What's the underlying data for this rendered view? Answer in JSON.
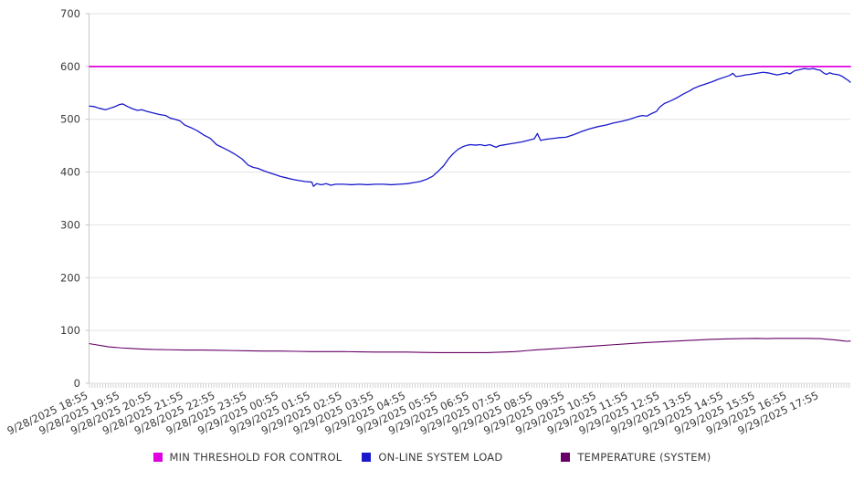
{
  "page": {
    "background": "#ffffff"
  },
  "legend": {
    "items": [
      {
        "label": "MIN THRESHOLD FOR CONTROL",
        "color": "#e000e0"
      },
      {
        "label": "ON-LINE SYSTEM LOAD",
        "color": "#1a1acc"
      },
      {
        "label": "TEMPERATURE (SYSTEM)",
        "color": "#660066"
      }
    ]
  },
  "chart_data": {
    "type": "line",
    "title": "",
    "xlabel": "",
    "ylabel": "",
    "x_unit": "hours since 9/28/2025 18:55",
    "xlim": [
      0,
      23.95
    ],
    "ylim": [
      0,
      700
    ],
    "y_ticks": [
      0,
      100,
      200,
      300,
      400,
      500,
      600,
      700
    ],
    "x_tick_labels": [
      "9/28/2025 18:55",
      "9/28/2025 19:55",
      "9/28/2025 20:55",
      "9/28/2025 21:55",
      "9/28/2025 22:55",
      "9/28/2025 23:55",
      "9/29/2025 00:55",
      "9/29/2025 01:55",
      "9/29/2025 02:55",
      "9/29/2025 03:55",
      "9/29/2025 04:55",
      "9/29/2025 05:55",
      "9/29/2025 06:55",
      "9/29/2025 07:55",
      "9/29/2025 08:55",
      "9/29/2025 09:55",
      "9/29/2025 10:55",
      "9/29/2025 11:55",
      "9/29/2025 12:55",
      "9/29/2025 13:55",
      "9/29/2025 14:55",
      "9/29/2025 15:55",
      "9/29/2025 16:55",
      "9/29/2025 17:55"
    ],
    "minor_ticks_per_hour": 12,
    "grid": "horizontal",
    "legend_position": "bottom",
    "colors": {
      "grid_line": "#e3e3e3",
      "axis_line": "#c8c8c8",
      "tick_mark": "#c8c8c8",
      "tick_label": "#3a3a3a"
    },
    "series": [
      {
        "name": "MIN THRESHOLD FOR CONTROL",
        "color": "#e000e0",
        "width": 1.8,
        "points": [
          [
            0,
            600
          ],
          [
            23.95,
            600
          ]
        ]
      },
      {
        "name": "ON-LINE SYSTEM LOAD",
        "color": "#1a1acc",
        "width": 1.3,
        "points": [
          [
            0,
            525
          ],
          [
            0.15,
            524
          ],
          [
            0.3,
            521
          ],
          [
            0.5,
            518
          ],
          [
            0.65,
            521
          ],
          [
            0.8,
            524
          ],
          [
            0.95,
            528
          ],
          [
            1.05,
            529
          ],
          [
            1.2,
            524
          ],
          [
            1.35,
            520
          ],
          [
            1.5,
            517
          ],
          [
            1.65,
            518
          ],
          [
            1.8,
            515
          ],
          [
            2,
            512
          ],
          [
            2.2,
            509
          ],
          [
            2.4,
            507
          ],
          [
            2.55,
            502
          ],
          [
            2.7,
            500
          ],
          [
            2.85,
            497
          ],
          [
            3,
            489
          ],
          [
            3.2,
            484
          ],
          [
            3.4,
            478
          ],
          [
            3.6,
            470
          ],
          [
            3.8,
            464
          ],
          [
            4,
            452
          ],
          [
            4.2,
            446
          ],
          [
            4.4,
            440
          ],
          [
            4.6,
            433
          ],
          [
            4.8,
            425
          ],
          [
            5,
            413
          ],
          [
            5.15,
            409
          ],
          [
            5.3,
            407
          ],
          [
            5.5,
            402
          ],
          [
            5.7,
            398
          ],
          [
            5.9,
            394
          ],
          [
            6,
            392
          ],
          [
            6.2,
            389
          ],
          [
            6.4,
            386
          ],
          [
            6.6,
            384
          ],
          [
            6.8,
            382
          ],
          [
            7,
            381
          ],
          [
            7.05,
            373
          ],
          [
            7.15,
            378
          ],
          [
            7.3,
            376
          ],
          [
            7.45,
            378
          ],
          [
            7.6,
            375
          ],
          [
            7.75,
            377
          ],
          [
            8,
            377
          ],
          [
            8.25,
            376
          ],
          [
            8.5,
            377
          ],
          [
            8.75,
            376
          ],
          [
            9,
            377
          ],
          [
            9.25,
            377
          ],
          [
            9.5,
            376
          ],
          [
            9.75,
            377
          ],
          [
            10,
            378
          ],
          [
            10.2,
            380
          ],
          [
            10.4,
            382
          ],
          [
            10.6,
            386
          ],
          [
            10.8,
            392
          ],
          [
            11,
            403
          ],
          [
            11.15,
            412
          ],
          [
            11.3,
            425
          ],
          [
            11.45,
            435
          ],
          [
            11.6,
            443
          ],
          [
            11.75,
            448
          ],
          [
            11.9,
            451
          ],
          [
            12,
            452
          ],
          [
            12.15,
            451
          ],
          [
            12.3,
            452
          ],
          [
            12.45,
            450
          ],
          [
            12.6,
            452
          ],
          [
            12.8,
            447
          ],
          [
            12.9,
            450
          ],
          [
            13,
            451
          ],
          [
            13.2,
            453
          ],
          [
            13.4,
            455
          ],
          [
            13.6,
            457
          ],
          [
            13.8,
            460
          ],
          [
            14,
            463
          ],
          [
            14.1,
            473
          ],
          [
            14.2,
            460
          ],
          [
            14.35,
            462
          ],
          [
            14.5,
            463
          ],
          [
            14.75,
            465
          ],
          [
            15,
            466
          ],
          [
            15.25,
            471
          ],
          [
            15.5,
            477
          ],
          [
            15.75,
            482
          ],
          [
            16,
            486
          ],
          [
            16.25,
            489
          ],
          [
            16.5,
            493
          ],
          [
            16.75,
            496
          ],
          [
            17,
            500
          ],
          [
            17.25,
            505
          ],
          [
            17.4,
            507
          ],
          [
            17.55,
            506
          ],
          [
            17.7,
            511
          ],
          [
            17.85,
            515
          ],
          [
            17.95,
            523
          ],
          [
            18.1,
            530
          ],
          [
            18.3,
            535
          ],
          [
            18.5,
            541
          ],
          [
            18.7,
            548
          ],
          [
            18.9,
            554
          ],
          [
            19,
            558
          ],
          [
            19.2,
            563
          ],
          [
            19.4,
            567
          ],
          [
            19.6,
            571
          ],
          [
            19.8,
            576
          ],
          [
            20,
            580
          ],
          [
            20.15,
            583
          ],
          [
            20.25,
            587
          ],
          [
            20.35,
            581
          ],
          [
            20.5,
            582
          ],
          [
            20.65,
            584
          ],
          [
            20.8,
            585
          ],
          [
            21,
            587
          ],
          [
            21.2,
            589
          ],
          [
            21.35,
            588
          ],
          [
            21.5,
            586
          ],
          [
            21.65,
            584
          ],
          [
            21.8,
            586
          ],
          [
            21.95,
            588
          ],
          [
            22.05,
            586
          ],
          [
            22.2,
            592
          ],
          [
            22.35,
            594
          ],
          [
            22.5,
            596
          ],
          [
            22.65,
            595
          ],
          [
            22.8,
            596
          ],
          [
            22.9,
            594
          ],
          [
            23,
            593
          ],
          [
            23.1,
            588
          ],
          [
            23.2,
            585
          ],
          [
            23.3,
            588
          ],
          [
            23.4,
            586
          ],
          [
            23.5,
            585
          ],
          [
            23.6,
            584
          ],
          [
            23.7,
            581
          ],
          [
            23.8,
            577
          ],
          [
            23.9,
            573
          ],
          [
            23.95,
            570
          ]
        ]
      },
      {
        "name": "TEMPERATURE (SYSTEM)",
        "color": "#660066",
        "width": 1.1,
        "points": [
          [
            0,
            75
          ],
          [
            0.2,
            73
          ],
          [
            0.4,
            71
          ],
          [
            0.6,
            69
          ],
          [
            0.8,
            68
          ],
          [
            1,
            67
          ],
          [
            1.3,
            66
          ],
          [
            1.6,
            65
          ],
          [
            2,
            64
          ],
          [
            2.5,
            63.5
          ],
          [
            3,
            63
          ],
          [
            3.5,
            63
          ],
          [
            4,
            62.5
          ],
          [
            4.5,
            62
          ],
          [
            5,
            61.5
          ],
          [
            5.5,
            61
          ],
          [
            6,
            61
          ],
          [
            6.5,
            60.5
          ],
          [
            7,
            60
          ],
          [
            7.5,
            60
          ],
          [
            8,
            60
          ],
          [
            8.5,
            59.5
          ],
          [
            9,
            59
          ],
          [
            9.5,
            59
          ],
          [
            10,
            59
          ],
          [
            10.5,
            58.5
          ],
          [
            11,
            58
          ],
          [
            11.5,
            58
          ],
          [
            12,
            58
          ],
          [
            12.5,
            58
          ],
          [
            13,
            59
          ],
          [
            13.4,
            60
          ],
          [
            13.8,
            62
          ],
          [
            14,
            63
          ],
          [
            14.5,
            65
          ],
          [
            15,
            67
          ],
          [
            15.5,
            69
          ],
          [
            16,
            71
          ],
          [
            16.5,
            73
          ],
          [
            17,
            75
          ],
          [
            17.5,
            77
          ],
          [
            18,
            78.5
          ],
          [
            18.5,
            80
          ],
          [
            19,
            81.5
          ],
          [
            19.5,
            83
          ],
          [
            20,
            84
          ],
          [
            20.5,
            84.5
          ],
          [
            21,
            85
          ],
          [
            21.3,
            84.5
          ],
          [
            21.6,
            85
          ],
          [
            22,
            85
          ],
          [
            22.5,
            85
          ],
          [
            23,
            84.5
          ],
          [
            23.2,
            83.5
          ],
          [
            23.5,
            82
          ],
          [
            23.7,
            80.5
          ],
          [
            23.85,
            79.5
          ],
          [
            23.95,
            80
          ]
        ]
      }
    ]
  }
}
